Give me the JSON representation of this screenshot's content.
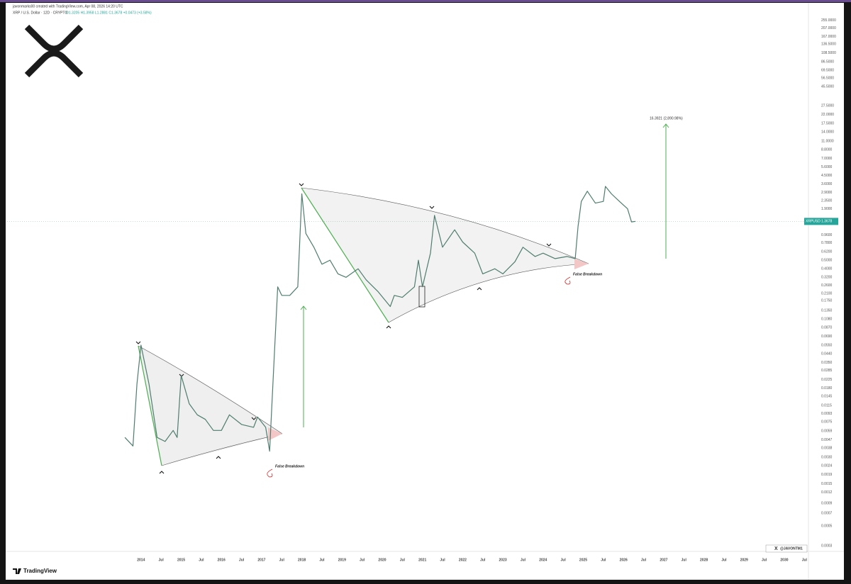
{
  "header": {
    "credit": "javonmarks00 created with TradingView.com, Apr 08, 2026 14:20 UTC",
    "symbol": "XRP / U.S. Dollar · 12D · CRYPTO",
    "ohlc": "O1.3205 H1.3958 L1.2881 C1.3678 +0.0473 (+3.58%)"
  },
  "chart_data": {
    "type": "line",
    "log_scale": true,
    "grid": false,
    "xlim": [
      2010.67,
      2030.6
    ],
    "ylim": [
      0.0003,
      400
    ],
    "xticks": [
      2014,
      {
        "value": 2014.5,
        "label": "Jul"
      },
      2015,
      {
        "value": 2015.5,
        "label": "Jul"
      },
      2016,
      {
        "value": 2016.5,
        "label": "Jul"
      },
      2017,
      {
        "value": 2017.5,
        "label": "Jul"
      },
      2018,
      {
        "value": 2018.5,
        "label": "Jul"
      },
      2019,
      {
        "value": 2019.5,
        "label": "Jul"
      },
      2020,
      {
        "value": 2020.5,
        "label": "Jul"
      },
      2021,
      {
        "value": 2021.5,
        "label": "Jul"
      },
      2022,
      {
        "value": 2022.5,
        "label": "Jul"
      },
      2023,
      {
        "value": 2023.5,
        "label": "Jul"
      },
      2024,
      {
        "value": 2024.5,
        "label": "Jul"
      },
      2025,
      {
        "value": 2025.5,
        "label": "Jul"
      },
      2026,
      {
        "value": 2026.5,
        "label": "Jul"
      },
      2027,
      {
        "value": 2027.5,
        "label": "Jul"
      },
      2028,
      {
        "value": 2028.5,
        "label": "Jul"
      },
      2029,
      {
        "value": 2029.5,
        "label": "Jul"
      },
      2030,
      {
        "value": 2030.5,
        "label": "Jul"
      }
    ],
    "yticks": [
      {
        "value": 255,
        "label": "255.0000"
      },
      {
        "value": 207,
        "label": "207.0000"
      },
      {
        "value": 167,
        "label": "167.0000"
      },
      {
        "value": 136.5,
        "label": "136.5000"
      },
      {
        "value": 108.5,
        "label": "108.5000"
      },
      {
        "value": 86.5,
        "label": "86.5000"
      },
      {
        "value": 69.5,
        "label": "69.5000"
      },
      {
        "value": 56.5,
        "label": "56.5000"
      },
      {
        "value": 45.5,
        "label": "45.5000"
      },
      {
        "value": 27.5,
        "label": "27.5000"
      },
      {
        "value": 22,
        "label": "22.0000"
      },
      {
        "value": 17.5,
        "label": "17.5000"
      },
      {
        "value": 14,
        "label": "14.0000"
      },
      {
        "value": 11,
        "label": "11.0000"
      },
      {
        "value": 8.8,
        "label": "8.8000"
      },
      {
        "value": 7,
        "label": "7.0000"
      },
      {
        "value": 5.6,
        "label": "5.6000"
      },
      {
        "value": 4.5,
        "label": "4.5000"
      },
      {
        "value": 3.6,
        "label": "3.6000"
      },
      {
        "value": 2.9,
        "label": "2.9000"
      },
      {
        "value": 2.35,
        "label": "2.3500"
      },
      {
        "value": 1.9,
        "label": "1.9000"
      },
      {
        "value": 0.96,
        "label": "0.9600"
      },
      {
        "value": 0.78,
        "label": "0.7800"
      },
      {
        "value": 0.62,
        "label": "0.6200"
      },
      {
        "value": 0.5,
        "label": "0.5000"
      },
      {
        "value": 0.4,
        "label": "0.4000"
      },
      {
        "value": 0.32,
        "label": "0.3200"
      },
      {
        "value": 0.26,
        "label": "0.2600"
      },
      {
        "value": 0.21,
        "label": "0.2100"
      },
      {
        "value": 0.175,
        "label": "0.1750"
      },
      {
        "value": 0.135,
        "label": "0.1350"
      },
      {
        "value": 0.108,
        "label": "0.1080"
      },
      {
        "value": 0.087,
        "label": "0.0870"
      },
      {
        "value": 0.069,
        "label": "0.0690"
      },
      {
        "value": 0.055,
        "label": "0.0550"
      },
      {
        "value": 0.044,
        "label": "0.0440"
      },
      {
        "value": 0.035,
        "label": "0.0350"
      },
      {
        "value": 0.0285,
        "label": "0.0285"
      },
      {
        "value": 0.0225,
        "label": "0.0225"
      },
      {
        "value": 0.018,
        "label": "0.0180"
      },
      {
        "value": 0.0145,
        "label": "0.0145"
      },
      {
        "value": 0.0115,
        "label": "0.0115"
      },
      {
        "value": 0.0093,
        "label": "0.0093"
      },
      {
        "value": 0.0075,
        "label": "0.0075"
      },
      {
        "value": 0.0059,
        "label": "0.0059"
      },
      {
        "value": 0.0047,
        "label": "0.0047"
      },
      {
        "value": 0.0038,
        "label": "0.0038"
      },
      {
        "value": 0.003,
        "label": "0.0030"
      },
      {
        "value": 0.0024,
        "label": "0.0024"
      },
      {
        "value": 0.0019,
        "label": "0.0019"
      },
      {
        "value": 0.0015,
        "label": "0.0015"
      },
      {
        "value": 0.0012,
        "label": "0.0012"
      },
      {
        "value": 0.0009,
        "label": "0.0009"
      },
      {
        "value": 0.0007,
        "label": "0.0007"
      },
      {
        "value": 0.0005,
        "label": "0.0005"
      },
      {
        "value": 0.0003,
        "label": "0.0003"
      }
    ],
    "series": [
      {
        "name": "XRPUSD",
        "color": "#4f7d70",
        "x": [
          2013.6,
          2013.8,
          2013.9,
          2014.0,
          2014.2,
          2014.4,
          2014.6,
          2014.8,
          2014.9,
          2015.0,
          2015.2,
          2015.4,
          2015.6,
          2015.8,
          2016.0,
          2016.2,
          2016.5,
          2016.8,
          2016.9,
          2017.1,
          2017.2,
          2017.3,
          2017.4,
          2017.5,
          2017.7,
          2017.9,
          2018.0,
          2018.1,
          2018.3,
          2018.5,
          2018.7,
          2018.9,
          2019.1,
          2019.4,
          2019.6,
          2019.9,
          2020.2,
          2020.3,
          2020.5,
          2020.8,
          2020.9,
          2021.0,
          2021.2,
          2021.3,
          2021.5,
          2021.8,
          2022.0,
          2022.3,
          2022.5,
          2022.8,
          2023.0,
          2023.3,
          2023.5,
          2023.8,
          2024.0,
          2024.3,
          2024.6,
          2024.8,
          2024.87,
          2024.95,
          2025.1,
          2025.3,
          2025.5,
          2025.55,
          2025.7,
          2025.9,
          2026.1,
          2026.2,
          2026.3
        ],
        "values": [
          0.005,
          0.004,
          0.02,
          0.055,
          0.02,
          0.005,
          0.0045,
          0.006,
          0.005,
          0.025,
          0.012,
          0.009,
          0.008,
          0.006,
          0.006,
          0.009,
          0.007,
          0.0065,
          0.0085,
          0.0065,
          0.0035,
          0.03,
          0.25,
          0.2,
          0.2,
          0.25,
          2.8,
          1.0,
          0.7,
          0.45,
          0.5,
          0.35,
          0.32,
          0.4,
          0.3,
          0.22,
          0.15,
          0.2,
          0.19,
          0.25,
          0.5,
          0.25,
          0.6,
          1.6,
          0.7,
          1.1,
          0.8,
          0.6,
          0.35,
          0.4,
          0.35,
          0.48,
          0.7,
          0.55,
          0.6,
          0.52,
          0.55,
          0.52,
          1.2,
          2.3,
          3.0,
          2.2,
          2.3,
          3.4,
          2.8,
          2.3,
          1.9,
          1.35,
          1.37
        ]
      }
    ],
    "last_value": 1.3678,
    "annotations": {
      "target": "16.3921 (2,890.98%)",
      "false_breakdown_1": "False Breakdown",
      "false_breakdown_2": "False Breakdown"
    }
  },
  "footer": {
    "brand": "TradingView",
    "handle": "@JAVONTM1"
  }
}
